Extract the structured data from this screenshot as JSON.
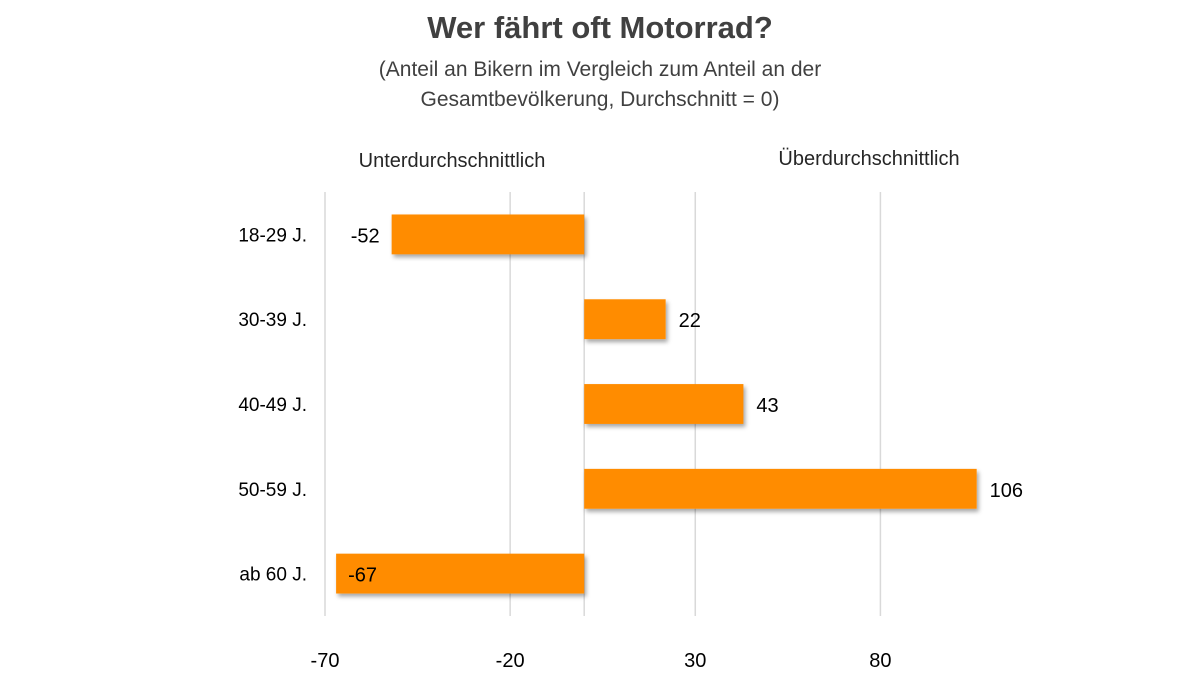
{
  "chart_data": {
    "type": "bar",
    "orientation": "horizontal",
    "title": "Wer fährt oft Motorrad?",
    "subtitle_lines": [
      "(Anteil an Bikern im Vergleich zum Anteil an der",
      "Gesamtbevölkerung, Durchschnitt = 0)"
    ],
    "header_left": "Unterdurchschnittlich",
    "header_right": "Überdurchschnittlich",
    "categories": [
      "18-29 J.",
      "30-39 J.",
      "40-49 J.",
      "50-59 J.",
      "ab 60 J."
    ],
    "values": [
      -52,
      22,
      43,
      106,
      -67
    ],
    "data_labels": [
      "-52",
      "22",
      "43",
      "106",
      "-67"
    ],
    "xticks": [
      -70,
      -20,
      30,
      80
    ],
    "xlim": [
      -70,
      115
    ],
    "grid": true,
    "xlabel": "",
    "ylabel": "",
    "legend": "none",
    "bar_color": "#ff8c00"
  }
}
